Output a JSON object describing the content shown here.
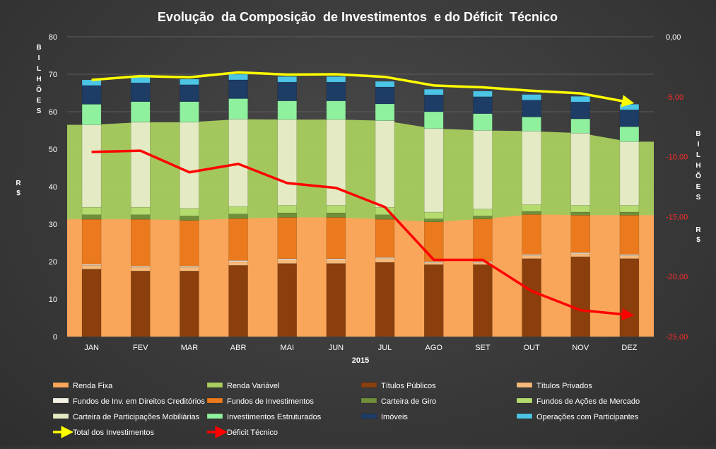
{
  "colors": {
    "renda_fixa_area": "#f9a65a",
    "renda_variavel_area": "#a9cf5f",
    "titulos_publicos": "#8a3f0c",
    "titulos_privados": "#f6b97a",
    "fundos_direitos": "#f2efe4",
    "fundos_investimentos": "#ea7a1d",
    "carteira_giro": "#6f8f3b",
    "fundos_acoes": "#b4db6d",
    "carteira_participacoes": "#e3eac4",
    "investimentos_estruturados": "#8ff09e",
    "imoveis": "#1d3c66",
    "operacoes_participantes": "#4cc4e6",
    "total_line": "#ffff00",
    "deficit_line": "#ff0000"
  },
  "chart_data": {
    "type": "bar",
    "title": "Evolução  da Composição  de Investimentos  e do Déficit  Técnico",
    "xlabel": "2015",
    "ylabel_left": "B I L H Õ E S",
    "ylabel_left_unit": "R $",
    "ylabel_right": "B I L H Õ E S",
    "ylabel_right_unit": "R $",
    "categories": [
      "JAN",
      "FEV",
      "MAR",
      "ABR",
      "MAI",
      "JUN",
      "JUL",
      "AGO",
      "SET",
      "OUT",
      "NOV",
      "DEZ"
    ],
    "ylim_left": [
      0,
      80
    ],
    "yticks_left": [
      "0",
      "10",
      "20",
      "30",
      "40",
      "50",
      "60",
      "70",
      "80"
    ],
    "ylim_right": [
      -25,
      0
    ],
    "yticks_right": [
      "-25,00",
      "-20,00",
      "-15,00",
      "-10,00",
      "-5,00",
      "0,00"
    ],
    "area_series": [
      {
        "name": "Renda Fixa",
        "values": [
          31.3,
          31.3,
          31.0,
          31.5,
          31.8,
          31.8,
          31.3,
          30.6,
          31.4,
          32.6,
          32.4,
          32.4
        ]
      },
      {
        "name": "Renda Variável",
        "values": [
          56.5,
          57.2,
          57.2,
          58.0,
          57.9,
          57.9,
          57.6,
          55.5,
          55.0,
          54.8,
          54.3,
          52.0
        ]
      }
    ],
    "bar_series": [
      {
        "name": "Títulos Públicos",
        "values": [
          18.0,
          17.5,
          17.5,
          19.0,
          19.5,
          19.5,
          19.8,
          19.2,
          19.2,
          20.8,
          21.3,
          20.8
        ]
      },
      {
        "name": "Títulos Privados",
        "values": [
          1.0,
          1.0,
          1.0,
          1.0,
          1.0,
          1.0,
          1.0,
          0.5,
          0.5,
          0.8,
          0.8,
          0.8
        ]
      },
      {
        "name": "Fundos de Inv. em Direitos Creditórios",
        "values": [
          0.3,
          0.3,
          0.3,
          0.3,
          0.3,
          0.3,
          0.3,
          0.3,
          0.3,
          0.3,
          0.3,
          0.3
        ]
      },
      {
        "name": "Fundos de Investimentos",
        "values": [
          12.0,
          12.5,
          12.2,
          11.2,
          11.0,
          11.0,
          10.2,
          10.6,
          11.4,
          10.7,
          10.0,
          10.5
        ]
      },
      {
        "name": "Carteira de Giro",
        "values": [
          1.2,
          1.2,
          1.2,
          1.2,
          1.2,
          1.2,
          1.2,
          0.8,
          0.8,
          0.8,
          0.8,
          0.8
        ]
      },
      {
        "name": "Fundos de Ações de Mercado",
        "values": [
          2.0,
          2.0,
          2.0,
          2.0,
          2.0,
          2.0,
          2.0,
          1.8,
          1.8,
          1.8,
          1.8,
          1.8
        ]
      },
      {
        "name": "Carteira de Participações Mobiliárias",
        "values": [
          22.0,
          22.7,
          23.0,
          23.3,
          22.9,
          22.9,
          23.1,
          22.3,
          21.0,
          19.6,
          19.3,
          17.0
        ]
      },
      {
        "name": "Investimentos Estruturados",
        "values": [
          5.5,
          5.5,
          5.5,
          5.5,
          5.0,
          5.0,
          4.5,
          4.5,
          4.5,
          3.8,
          3.8,
          4.0
        ]
      },
      {
        "name": "Imóveis",
        "values": [
          5.0,
          5.0,
          4.5,
          5.0,
          5.0,
          5.0,
          4.5,
          4.5,
          4.5,
          4.5,
          4.5,
          4.5
        ]
      },
      {
        "name": "Operações com Participantes",
        "values": [
          1.5,
          1.5,
          1.5,
          1.5,
          1.5,
          1.5,
          1.5,
          1.5,
          1.5,
          1.5,
          1.5,
          1.5
        ]
      }
    ],
    "line_series": [
      {
        "name": "Total dos Investimentos",
        "axis": "left",
        "values": [
          68.5,
          69.5,
          69.2,
          70.5,
          69.9,
          70.0,
          69.3,
          67.0,
          66.5,
          65.6,
          64.9,
          62.5
        ]
      },
      {
        "name": "Déficit Técnico",
        "axis": "right",
        "values": [
          -9.6,
          -9.5,
          -11.3,
          -10.6,
          -12.2,
          -12.6,
          -14.2,
          -18.6,
          -18.6,
          -21.2,
          -22.8,
          -23.2
        ]
      }
    ],
    "legend": [
      {
        "label": "Renda Fixa",
        "color": "#f9a65a"
      },
      {
        "label": "Renda Variável",
        "color": "#a9cf5f"
      },
      {
        "label": "Títulos Públicos",
        "color": "#8a3f0c"
      },
      {
        "label": "Títulos Privados",
        "color": "#f6b97a"
      },
      {
        "label": "Fundos de Inv. em Direitos Creditórios",
        "color": "#f2efe4"
      },
      {
        "label": "Fundos de Investimentos",
        "color": "#ea7a1d"
      },
      {
        "label": "Carteira de Giro",
        "color": "#6f8f3b"
      },
      {
        "label": "Fundos de Ações de Mercado",
        "color": "#b4db6d"
      },
      {
        "label": "Carteira de Participações Mobiliárias",
        "color": "#e3eac4"
      },
      {
        "label": "Investimentos Estruturados",
        "color": "#8ff09e"
      },
      {
        "label": "Imóveis",
        "color": "#1d3c66"
      },
      {
        "label": "Operações com Participantes",
        "color": "#4cc4e6"
      },
      {
        "label": "Total dos Investimentos",
        "color": "#ffff00"
      },
      {
        "label": "Déficit Técnico",
        "color": "#ff0000"
      }
    ],
    "legend_position": "bottom",
    "grid": true
  }
}
